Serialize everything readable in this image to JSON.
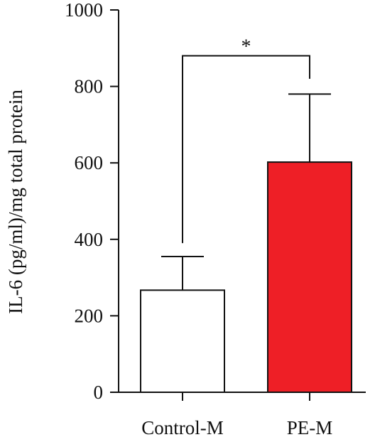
{
  "chart_data": {
    "type": "bar",
    "title": "",
    "xlabel": "",
    "ylabel": "IL-6 (pg/ml)/mg total protein",
    "ylim": [
      0,
      1000
    ],
    "yticks": [
      "0",
      "200",
      "400",
      "600",
      "800",
      "1000"
    ],
    "ytick_values": [
      0,
      200,
      400,
      600,
      800,
      1000
    ],
    "categories": [
      "Control-M",
      "PE-M"
    ],
    "values": [
      267,
      602
    ],
    "error_upper": [
      355,
      780
    ],
    "bar_colors": [
      "#ffffff",
      "#ee1f26"
    ],
    "bar_edge_color": "#111111",
    "grid": false,
    "legend": "none",
    "significance": {
      "between": [
        "Control-M",
        "PE-M"
      ],
      "label": "*",
      "bracket_y": 880,
      "left_drop_y": 390,
      "right_drop_y": 820
    }
  }
}
